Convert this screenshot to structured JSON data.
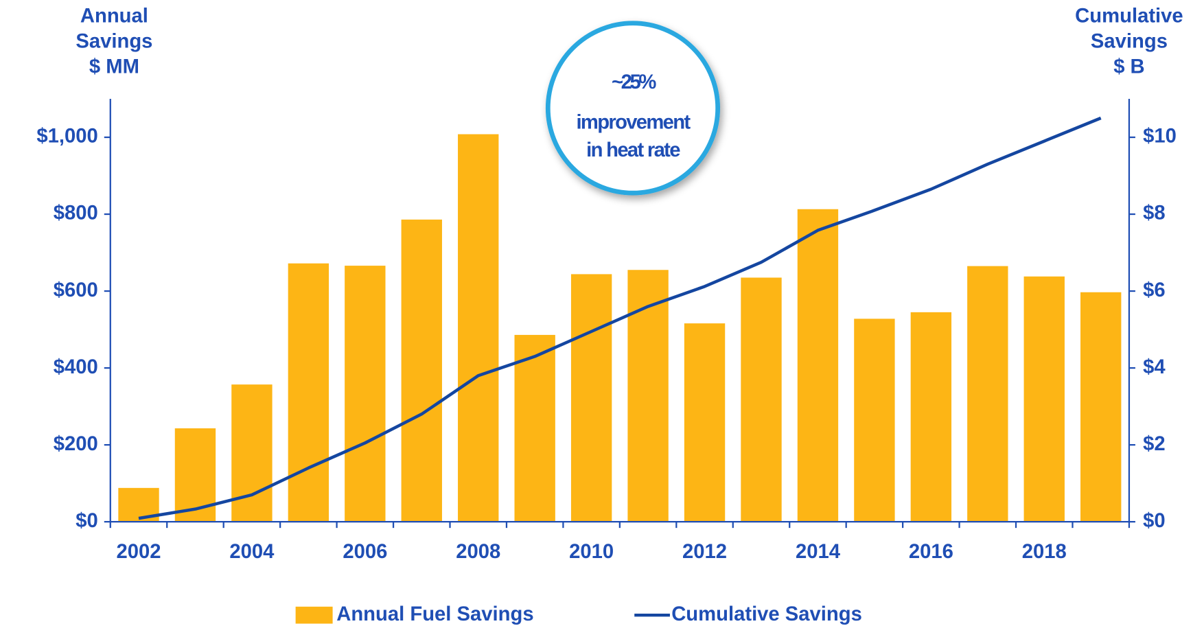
{
  "chart_data": {
    "type": "bar",
    "y_label": [
      "Annual",
      "Savings",
      "$ MM"
    ],
    "y2_label": [
      "Cumulative",
      "Savings",
      "$ B"
    ],
    "annotation": {
      "headline": "~25%",
      "lines": [
        "improvement",
        "in heat rate"
      ]
    },
    "categories": [
      "2002",
      null,
      "2004",
      null,
      "2006",
      null,
      "2008",
      null,
      "2010",
      null,
      "2012",
      null,
      "2014",
      null,
      "2016",
      null,
      "2018",
      null
    ],
    "series": [
      {
        "name": "Annual Fuel Savings",
        "type": "bar",
        "axis": "y",
        "color": "#fdb515",
        "values": [
          88,
          243,
          357,
          672,
          666,
          786,
          1008,
          486,
          644,
          655,
          516,
          635,
          813,
          528,
          545,
          665,
          638,
          597
        ]
      },
      {
        "name": "Cumulative Savings",
        "type": "line",
        "axis": "y2",
        "color": "#1446a0",
        "values": [
          0.09,
          0.33,
          0.7,
          1.4,
          2.05,
          2.8,
          3.8,
          4.3,
          4.95,
          5.6,
          6.12,
          6.75,
          7.58,
          8.1,
          8.65,
          9.3,
          9.9,
          10.5
        ]
      }
    ],
    "ylim": [
      0,
      1100
    ],
    "yticks": [
      {
        "value": 0,
        "label": "$0"
      },
      {
        "value": 200,
        "label": "$200"
      },
      {
        "value": 400,
        "label": "$400"
      },
      {
        "value": 600,
        "label": "$600"
      },
      {
        "value": 800,
        "label": "$800"
      },
      {
        "value": 1000,
        "label": "$1,000"
      }
    ],
    "y2lim": [
      0,
      11
    ],
    "y2ticks": [
      {
        "value": 0,
        "label": "$0"
      },
      {
        "value": 2,
        "label": "$2"
      },
      {
        "value": 4,
        "label": "$4"
      },
      {
        "value": 6,
        "label": "$6"
      },
      {
        "value": 8,
        "label": "$8"
      },
      {
        "value": 10,
        "label": "$10"
      }
    ],
    "grid": false,
    "legend": "bottom"
  }
}
